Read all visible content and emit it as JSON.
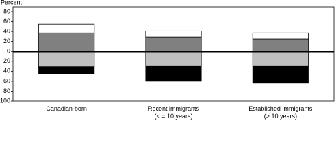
{
  "chart_data": {
    "type": "diverging_stacked_bar",
    "y_label": "Percent",
    "categories": [
      [
        "Canadian-born"
      ],
      [
        "Recent immigrants",
        "(< = 10 years)"
      ],
      [
        "Established immigrants",
        "(> 10 years)"
      ]
    ],
    "series": [
      {
        "color": "#808080",
        "values": [
          37,
          29,
          25
        ]
      },
      {
        "color": "#ffffff",
        "values": [
          18,
          12,
          12
        ]
      },
      {
        "color": "#c0c0c0",
        "values": [
          -31,
          -29,
          -29
        ]
      },
      {
        "color": "#000000",
        "values": [
          -14,
          -31,
          -35
        ]
      }
    ],
    "ylim": [
      -100,
      80
    ],
    "yticks": [
      80,
      60,
      40,
      20,
      0,
      {
        "value": -20,
        "label": "20"
      },
      {
        "value": -40,
        "label": "40"
      },
      {
        "value": -60,
        "label": "60"
      },
      {
        "value": -80,
        "label": "80"
      },
      {
        "value": -100,
        "label": "100"
      }
    ],
    "grid": false
  }
}
